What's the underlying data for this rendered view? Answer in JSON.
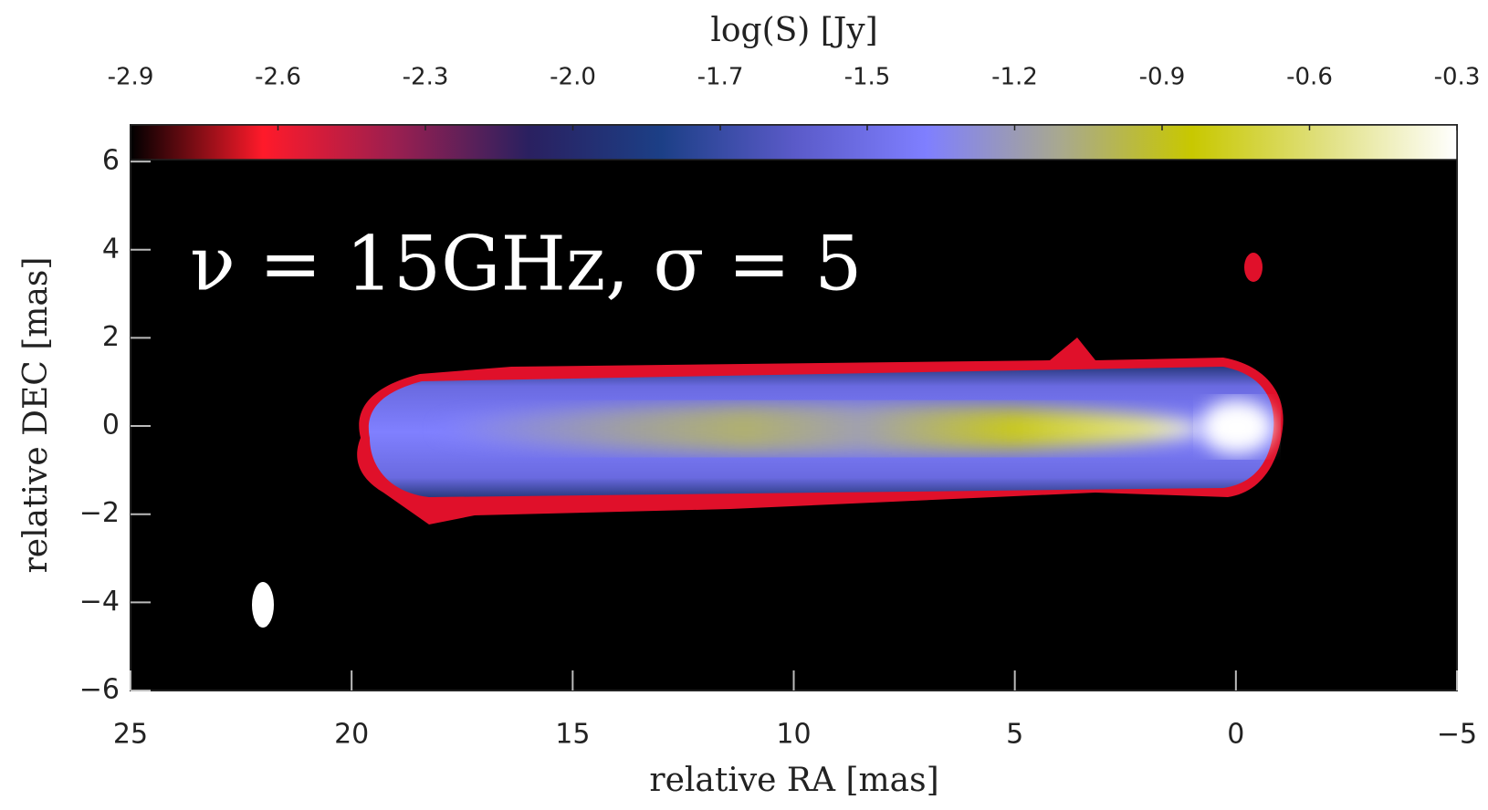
{
  "chart_data": {
    "type": "image",
    "annotation": "ν = 15GHz, σ = 5",
    "x_label": "relative RA [mas]",
    "y_label": "relative DEC [mas]",
    "colorbar_label": "log(S) [Jy]",
    "xlim": [
      25,
      -5
    ],
    "xticks": [
      25,
      20,
      15,
      10,
      5,
      0,
      {
        "value": -5,
        "label": "−5"
      }
    ],
    "ylim": [
      -6,
      6.83
    ],
    "yticks": [
      {
        "value": -6,
        "label": "−6"
      },
      {
        "value": -4,
        "label": "−4"
      },
      {
        "value": -2,
        "label": "−2"
      },
      0,
      2,
      4,
      6
    ],
    "colorlim": [
      -2.9,
      -0.3
    ],
    "colorticks": [
      -2.9,
      {
        "value": -2.611,
        "label": "-2.6"
      },
      {
        "value": -2.322,
        "label": "-2.3"
      },
      {
        "value": -2.033,
        "label": "-2.0"
      },
      {
        "value": -1.744,
        "label": "-1.7"
      },
      {
        "value": -1.456,
        "label": "-1.5"
      },
      {
        "value": -1.167,
        "label": "-1.2"
      },
      {
        "value": -0.878,
        "label": "-0.9"
      },
      {
        "value": -0.589,
        "label": "-0.6"
      },
      -0.3
    ],
    "colormap": [
      "#000000",
      "#ff1a2a",
      "#9a1f50",
      "#2a2060",
      "#1c3f86",
      "#5a5ac8",
      "#7f7fff",
      "#a8a890",
      "#c8c800",
      "#e0e080",
      "#ffffff"
    ]
  }
}
